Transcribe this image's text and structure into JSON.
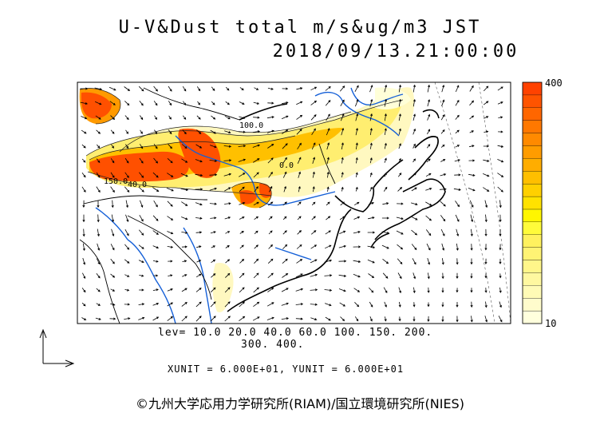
{
  "title": {
    "line1": "U-V&Dust total m/s&ug/m3 JST",
    "line2": "2018/09/13.21:00:00"
  },
  "colorbar": {
    "max_label": "400",
    "min_label": "10",
    "colors": [
      "#ffffdd",
      "#fffccc",
      "#fffbb6",
      "#fff8a0",
      "#fff68a",
      "#fff374",
      "#fff15e",
      "#fffb3a",
      "#fff600",
      "#ffe200",
      "#ffd000",
      "#ffbf00",
      "#ffad00",
      "#ff9c00",
      "#ff8a00",
      "#ff7800",
      "#ff6600",
      "#ff5400",
      "#ff4200"
    ]
  },
  "levels": {
    "line1": "lev=  10.0  20.0  40.0  60.0  100.  150.  200.",
    "line2": "300.  400."
  },
  "units": "XUNIT = 6.000E+01, YUNIT = 6.000E+01",
  "contour_labels": [
    "100.0",
    "150.0",
    "40.0",
    "0.0"
  ],
  "credit": "©九州大学応用力学研究所(RIAM)/国立環境研究所(NIES)",
  "colors": {
    "water": "#1560d8",
    "coast": "#000000",
    "high": "#ff5000",
    "mid": "#ffd800",
    "low": "#fff6a6"
  }
}
